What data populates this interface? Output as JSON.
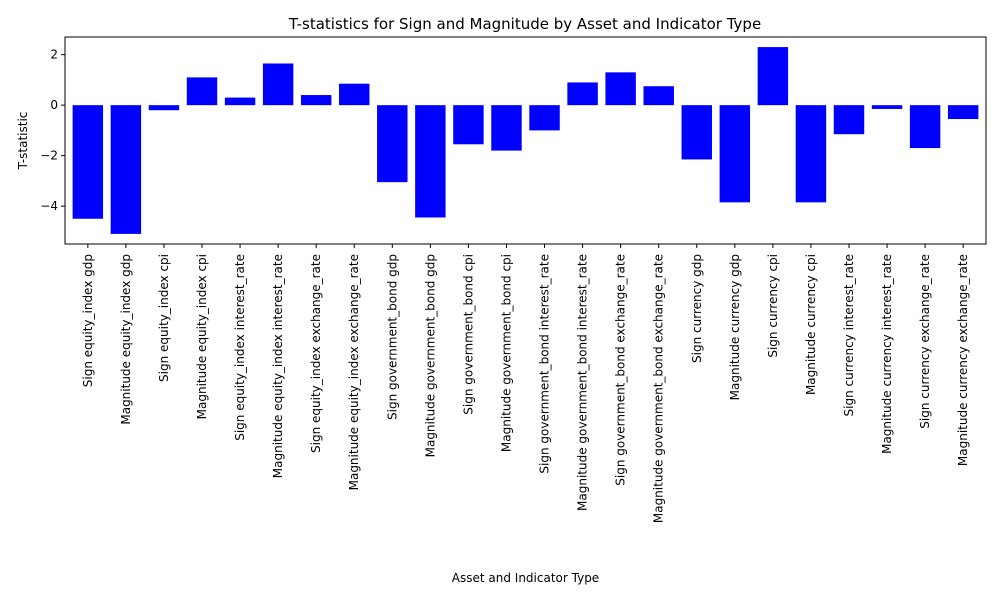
{
  "chart_data": {
    "type": "bar",
    "title": "T-statistics for Sign and Magnitude by Asset and Indicator Type",
    "xlabel": "Asset and Indicator Type",
    "ylabel": "T-statistic",
    "ylim": [
      -5.5,
      2.7
    ],
    "yticks": [
      -4,
      -2,
      0,
      2
    ],
    "bar_color": "#0000ff",
    "grid": false,
    "categories": [
      "Sign equity_index gdp",
      "Magnitude equity_index gdp",
      "Sign equity_index cpi",
      "Magnitude equity_index cpi",
      "Sign equity_index interest_rate",
      "Magnitude equity_index interest_rate",
      "Sign equity_index exchange_rate",
      "Magnitude equity_index exchange_rate",
      "Sign government_bond gdp",
      "Magnitude government_bond gdp",
      "Sign government_bond cpi",
      "Magnitude government_bond cpi",
      "Sign government_bond interest_rate",
      "Magnitude government_bond interest_rate",
      "Sign government_bond exchange_rate",
      "Magnitude government_bond exchange_rate",
      "Sign currency gdp",
      "Magnitude currency gdp",
      "Sign currency cpi",
      "Magnitude currency cpi",
      "Sign currency interest_rate",
      "Magnitude currency interest_rate",
      "Sign currency exchange_rate",
      "Magnitude currency exchange_rate"
    ],
    "values": [
      -4.5,
      -5.1,
      -0.2,
      1.1,
      0.3,
      1.65,
      0.4,
      0.85,
      -3.05,
      -4.45,
      -1.55,
      -1.8,
      -1.0,
      0.9,
      1.3,
      0.75,
      -2.15,
      -3.85,
      2.3,
      -3.85,
      -1.15,
      -0.15,
      -1.7,
      -0.55
    ]
  }
}
